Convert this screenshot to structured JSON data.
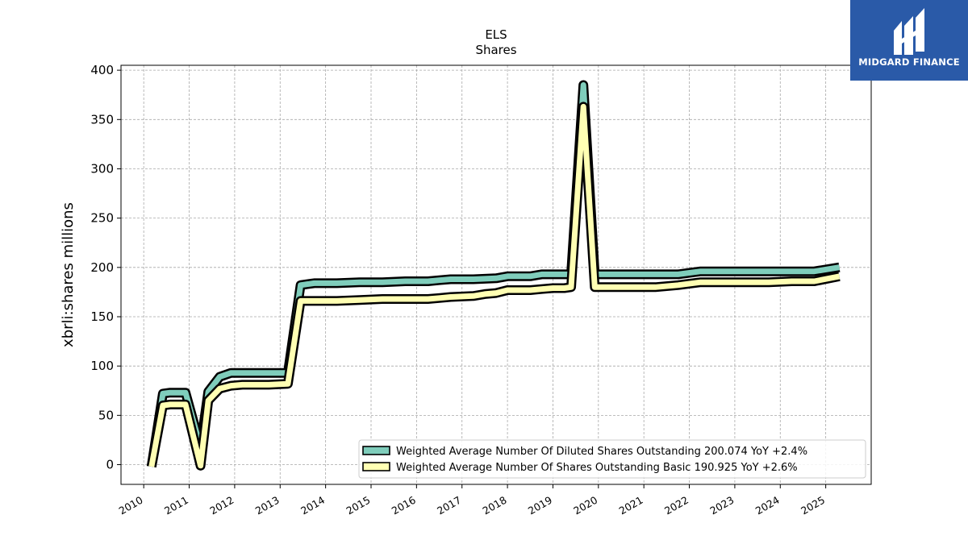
{
  "logo": {
    "text": "MIDGARD FINANCE",
    "color": "#2a5aa8"
  },
  "chart_data": {
    "type": "line",
    "title": "ELS",
    "subtitle": "Shares",
    "ylabel": "xbrli:shares millions",
    "xlabel": "",
    "ylim": [
      -20,
      405
    ],
    "xlim": [
      2009.5,
      2026.0
    ],
    "yticks": [
      0,
      50,
      100,
      150,
      200,
      250,
      300,
      350,
      400
    ],
    "xticks": [
      "2010",
      "2011",
      "2012",
      "2013",
      "2014",
      "2015",
      "2016",
      "2017",
      "2018",
      "2019",
      "2020",
      "2021",
      "2022",
      "2023",
      "2024",
      "2025"
    ],
    "grid": true,
    "legend_position": "lower-right",
    "series": [
      {
        "name": "Weighted Average Number Of Diluted Shares Outstanding",
        "legend_label": "Weighted Average Number Of Diluted Shares Outstanding  200.074 YoY +2.4%",
        "color": "#7fcdbb",
        "points": [
          [
            2010.17,
            -2
          ],
          [
            2010.42,
            72
          ],
          [
            2010.58,
            73
          ],
          [
            2010.75,
            73
          ],
          [
            2010.92,
            73
          ],
          [
            2011.25,
            18
          ],
          [
            2011.42,
            74
          ],
          [
            2011.67,
            89
          ],
          [
            2011.92,
            93
          ],
          [
            2012.17,
            93
          ],
          [
            2012.5,
            93
          ],
          [
            2012.75,
            93
          ],
          [
            2013.17,
            93
          ],
          [
            2013.45,
            182
          ],
          [
            2013.75,
            184
          ],
          [
            2014.25,
            184
          ],
          [
            2014.75,
            185
          ],
          [
            2015.25,
            185
          ],
          [
            2015.75,
            186
          ],
          [
            2016.25,
            186
          ],
          [
            2016.5,
            187
          ],
          [
            2016.75,
            188
          ],
          [
            2017.25,
            188
          ],
          [
            2017.75,
            189
          ],
          [
            2018.0,
            191
          ],
          [
            2018.25,
            191
          ],
          [
            2018.5,
            191
          ],
          [
            2018.75,
            193
          ],
          [
            2019.0,
            193
          ],
          [
            2019.25,
            193
          ],
          [
            2019.4,
            193
          ],
          [
            2019.67,
            385
          ],
          [
            2019.92,
            193
          ],
          [
            2020.25,
            193
          ],
          [
            2020.75,
            193
          ],
          [
            2021.25,
            193
          ],
          [
            2021.75,
            193
          ],
          [
            2022.25,
            196
          ],
          [
            2022.75,
            196
          ],
          [
            2023.25,
            196
          ],
          [
            2023.75,
            196
          ],
          [
            2024.25,
            196
          ],
          [
            2024.75,
            196
          ],
          [
            2025.3,
            200.074
          ]
        ]
      },
      {
        "name": "Weighted Average Number Of Shares Outstanding Basic",
        "legend_label": "Weighted Average Number Of Shares Outstanding Basic  190.925 YoY +2.6%",
        "color": "#ffffb3",
        "points": [
          [
            2010.17,
            -2
          ],
          [
            2010.42,
            60
          ],
          [
            2010.58,
            61
          ],
          [
            2010.75,
            61
          ],
          [
            2010.92,
            61
          ],
          [
            2011.25,
            -1
          ],
          [
            2011.42,
            65
          ],
          [
            2011.67,
            77
          ],
          [
            2011.92,
            80
          ],
          [
            2012.17,
            81
          ],
          [
            2012.5,
            81
          ],
          [
            2012.75,
            81
          ],
          [
            2013.17,
            82
          ],
          [
            2013.45,
            166
          ],
          [
            2013.75,
            166
          ],
          [
            2014.25,
            166
          ],
          [
            2014.75,
            167
          ],
          [
            2015.25,
            168
          ],
          [
            2015.75,
            168
          ],
          [
            2016.25,
            168
          ],
          [
            2016.5,
            169
          ],
          [
            2016.75,
            170
          ],
          [
            2017.25,
            171
          ],
          [
            2017.5,
            173
          ],
          [
            2017.75,
            174
          ],
          [
            2018.0,
            177
          ],
          [
            2018.25,
            177
          ],
          [
            2018.5,
            177
          ],
          [
            2018.75,
            178
          ],
          [
            2019.0,
            179
          ],
          [
            2019.25,
            179
          ],
          [
            2019.4,
            180
          ],
          [
            2019.67,
            363
          ],
          [
            2019.92,
            180
          ],
          [
            2020.25,
            180
          ],
          [
            2020.75,
            180
          ],
          [
            2021.25,
            180
          ],
          [
            2021.75,
            182
          ],
          [
            2022.25,
            185
          ],
          [
            2022.75,
            185
          ],
          [
            2023.25,
            185
          ],
          [
            2023.75,
            185
          ],
          [
            2024.25,
            186
          ],
          [
            2024.75,
            186
          ],
          [
            2025.3,
            190.925
          ]
        ]
      }
    ]
  }
}
